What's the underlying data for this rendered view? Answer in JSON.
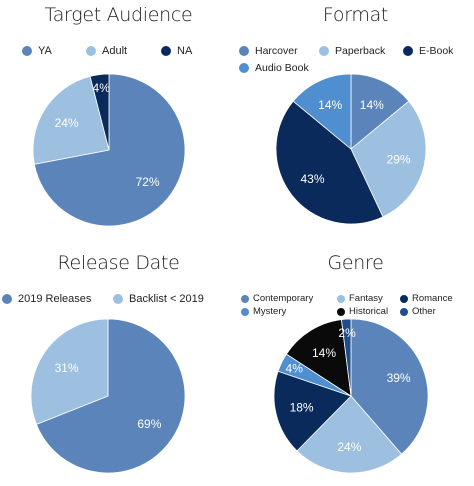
{
  "colors": {
    "mid_blue": "#5b84bb",
    "light_blue": "#9dbfe0",
    "navy": "#0b2a5c",
    "sky_blue": "#4f8fd0",
    "black": "#0a0a0a",
    "dark_blue": "#1f4c8a",
    "label": "#ffffff"
  },
  "chart_data": [
    {
      "type": "pie",
      "title": "Target Audience",
      "series": [
        {
          "name": "YA",
          "value": 72,
          "label": "72%",
          "color": "#5b84bb"
        },
        {
          "name": "Adult",
          "value": 24,
          "label": "24%",
          "color": "#9dbfe0"
        },
        {
          "name": "NA",
          "value": 4,
          "label": "4%",
          "color": "#0b2a5c"
        }
      ],
      "legend": "top"
    },
    {
      "type": "pie",
      "title": "Format",
      "series": [
        {
          "name": "Harcover",
          "value": 14,
          "label": "14%",
          "color": "#5b84bb"
        },
        {
          "name": "Paperback",
          "value": 29,
          "label": "29%",
          "color": "#9dbfe0"
        },
        {
          "name": "E-Book",
          "value": 43,
          "label": "43%",
          "color": "#0b2a5c"
        },
        {
          "name": "Audio Book",
          "value": 14,
          "label": "14%",
          "color": "#4f8fd0"
        }
      ],
      "legend": "top"
    },
    {
      "type": "pie",
      "title": "Release Date",
      "series": [
        {
          "name": "2019 Releases",
          "value": 69,
          "label": "69%",
          "color": "#5b84bb"
        },
        {
          "name": "Backlist < 2019",
          "value": 31,
          "label": "31%",
          "color": "#9dbfe0"
        }
      ],
      "legend": "top"
    },
    {
      "type": "pie",
      "title": "Genre",
      "series": [
        {
          "name": "Contemporary",
          "value": 39,
          "label": "39%",
          "color": "#5b84bb"
        },
        {
          "name": "Fantasy",
          "value": 24,
          "label": "24%",
          "color": "#9dbfe0"
        },
        {
          "name": "Romance",
          "value": 18,
          "label": "18%",
          "color": "#0b2a5c"
        },
        {
          "name": "Mystery",
          "value": 4,
          "label": "4%",
          "color": "#4f8fd0"
        },
        {
          "name": "Historical",
          "value": 14,
          "label": "14%",
          "color": "#0a0a0a"
        },
        {
          "name": "Other",
          "value": 2,
          "label": "2%",
          "color": "#1f4c8a"
        }
      ],
      "legend": "top"
    }
  ]
}
